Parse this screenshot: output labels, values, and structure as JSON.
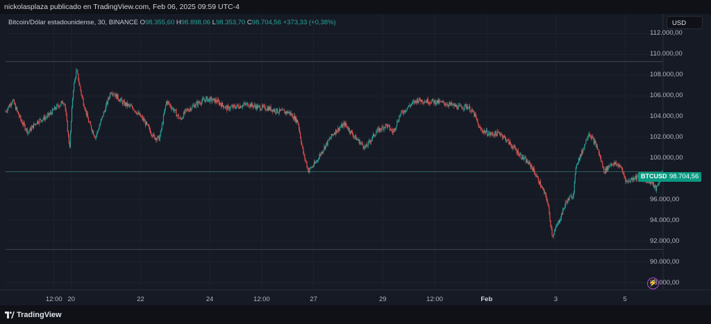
{
  "header": {
    "publisher_text": "nickolasplaza publicado en TradingView.com, Feb 06, 2025 09:59 UTC-4"
  },
  "legend": {
    "symbol": "Bitcoin/Dólar estadounidense, 30, BINANCE",
    "open_key": "O",
    "open": "98.355,60",
    "high_key": "H",
    "high": "98.898,06",
    "low_key": "L",
    "low": "98.353,70",
    "close_key": "C",
    "close": "98.704,56",
    "change": "+373,33 (+0,38%)"
  },
  "currency_button": "USD",
  "price_badge": {
    "symbol": "BTCUSD",
    "value": "98.704,56"
  },
  "footer": {
    "brand": "TradingView"
  },
  "colors": {
    "up": "#26a69a",
    "down": "#ef5350",
    "background": "#161a25",
    "badge": "#089981",
    "alert": "#b04cd6"
  },
  "icons": {
    "alert": "lightning-bolt-icon",
    "logo": "tradingview-logo-icon"
  },
  "chart_data": {
    "type": "candlestick",
    "interval": "30",
    "symbol": "BTCUSD",
    "exchange": "BINANCE",
    "y_ticks": [
      "112.000,00",
      "110.000,00",
      "108.000,00",
      "106.000,00",
      "104.000,00",
      "102.000,00",
      "100.000,00",
      "98.000,00",
      "96.000,00",
      "94.000,00",
      "92.000,00",
      "90.000,00",
      "88.000,00"
    ],
    "y_tick_values": [
      112000,
      110000,
      108000,
      106000,
      104000,
      102000,
      100000,
      98000,
      96000,
      94000,
      92000,
      90000,
      88000
    ],
    "ylim": [
      87300,
      113900
    ],
    "x_ticks": [
      {
        "label": "12:00",
        "day": 0.5,
        "bold": false
      },
      {
        "label": "20",
        "day": 1,
        "bold": false
      },
      {
        "label": "22",
        "day": 3,
        "bold": false
      },
      {
        "label": "24",
        "day": 5,
        "bold": false
      },
      {
        "label": "12:00",
        "day": 6.5,
        "bold": false
      },
      {
        "label": "27",
        "day": 8,
        "bold": false
      },
      {
        "label": "29",
        "day": 10,
        "bold": false
      },
      {
        "label": "12:00",
        "day": 11.5,
        "bold": false
      },
      {
        "label": "Feb",
        "day": 13,
        "bold": true
      },
      {
        "label": "3",
        "day": 15,
        "bold": false
      },
      {
        "label": "5",
        "day": 17,
        "bold": false
      }
    ],
    "xlim_days": [
      -0.9,
      18.1
    ],
    "horizontal_levels": [
      109300,
      98700,
      91200
    ],
    "last_price": 98704.56,
    "price_path": [
      [
        -0.9,
        104500
      ],
      [
        -0.7,
        105600
      ],
      [
        -0.45,
        103600
      ],
      [
        -0.25,
        102500
      ],
      [
        0,
        103500
      ],
      [
        0.3,
        104000
      ],
      [
        0.6,
        105000
      ],
      [
        0.8,
        105500
      ],
      [
        0.95,
        101000
      ],
      [
        1.05,
        106500
      ],
      [
        1.15,
        108500
      ],
      [
        1.3,
        106000
      ],
      [
        1.5,
        103500
      ],
      [
        1.7,
        102000
      ],
      [
        1.95,
        104500
      ],
      [
        2.15,
        106500
      ],
      [
        2.5,
        105300
      ],
      [
        2.8,
        104800
      ],
      [
        3.1,
        103600
      ],
      [
        3.4,
        102000
      ],
      [
        3.55,
        101900
      ],
      [
        3.75,
        105500
      ],
      [
        3.95,
        104700
      ],
      [
        4.15,
        103700
      ],
      [
        4.3,
        104500
      ],
      [
        4.6,
        105200
      ],
      [
        4.9,
        105700
      ],
      [
        5.2,
        105500
      ],
      [
        5.5,
        104800
      ],
      [
        5.8,
        105000
      ],
      [
        6.1,
        105200
      ],
      [
        6.4,
        104900
      ],
      [
        6.7,
        104800
      ],
      [
        7,
        104500
      ],
      [
        7.3,
        104400
      ],
      [
        7.55,
        103500
      ],
      [
        7.7,
        100500
      ],
      [
        7.85,
        98800
      ],
      [
        8.05,
        99500
      ],
      [
        8.3,
        101000
      ],
      [
        8.6,
        102500
      ],
      [
        8.9,
        103300
      ],
      [
        9.2,
        102000
      ],
      [
        9.5,
        101000
      ],
      [
        9.8,
        102500
      ],
      [
        10.1,
        103200
      ],
      [
        10.3,
        102500
      ],
      [
        10.5,
        104200
      ],
      [
        10.75,
        105000
      ],
      [
        11,
        105600
      ],
      [
        11.3,
        105500
      ],
      [
        11.6,
        105400
      ],
      [
        11.9,
        105200
      ],
      [
        12.2,
        104900
      ],
      [
        12.45,
        105000
      ],
      [
        12.65,
        104200
      ],
      [
        12.8,
        102800
      ],
      [
        13.1,
        102300
      ],
      [
        13.4,
        102400
      ],
      [
        13.7,
        101300
      ],
      [
        14,
        100200
      ],
      [
        14.3,
        99200
      ],
      [
        14.55,
        97500
      ],
      [
        14.75,
        96000
      ],
      [
        14.9,
        92500
      ],
      [
        15.1,
        94000
      ],
      [
        15.3,
        95800
      ],
      [
        15.5,
        96500
      ],
      [
        15.6,
        99500
      ],
      [
        15.75,
        100500
      ],
      [
        15.95,
        102500
      ],
      [
        16.2,
        101000
      ],
      [
        16.4,
        98700
      ],
      [
        16.6,
        99500
      ],
      [
        16.85,
        99300
      ],
      [
        17.05,
        97700
      ],
      [
        17.3,
        98200
      ],
      [
        17.55,
        98000
      ],
      [
        17.75,
        97700
      ],
      [
        17.9,
        97000
      ],
      [
        18.1,
        98700
      ]
    ]
  }
}
